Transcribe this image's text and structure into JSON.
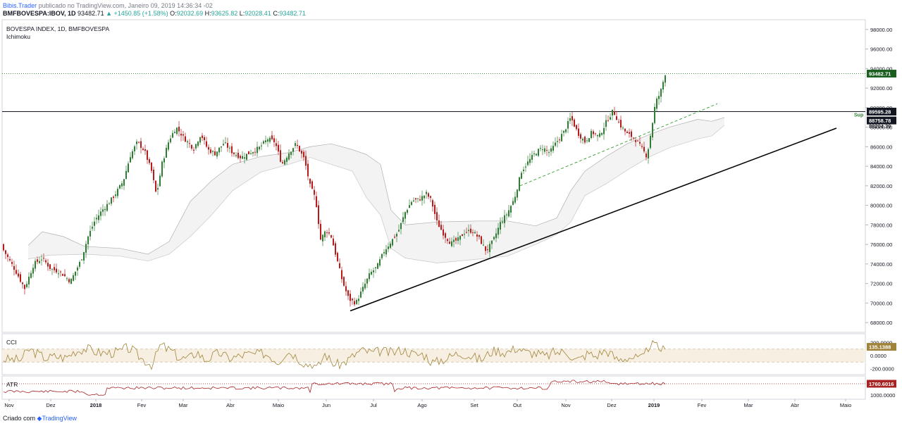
{
  "header": {
    "author": "Bibis.Trader",
    "published_text": "publicado no TradingView.com, Janeiro 09, 2019 14:36:34 -02",
    "symbol": "BMFBOVESPA:IBOV, 1D",
    "last": "93482.71",
    "change": "▲ +1450.85 (+1.58%)",
    "open_label": "O:",
    "open": "92032.69",
    "high_label": "H:",
    "high": "93625.82",
    "low_label": "L:",
    "low": "92028.41",
    "close_label": "C:",
    "close": "93482.71"
  },
  "chart_title": "BOVESPA INDEX, 1D, BMFBOVESPA",
  "indicator_label": "Ichimoku",
  "footer": {
    "prefix": "Criado com",
    "brand": "TradingView"
  },
  "colors": {
    "up": "#26a69a",
    "down": "#b71c1c",
    "body_up": "#2e7d32",
    "cloud": "#ebebeb",
    "cci": "#a1843b",
    "atr": "#a82424"
  },
  "chart_data": [
    {
      "type": "candlestick",
      "title": "BOVESPA INDEX, 1D, BMFBOVESPA",
      "x_ticks": [
        "Nov",
        "Dez",
        "2018",
        "Fev",
        "Mar",
        "Abr",
        "Maio",
        "Jun",
        "Jul",
        "Ago",
        "Set",
        "Out",
        "Nov",
        "Dez",
        "2019",
        "Fev",
        "Mar",
        "Abr",
        "Maio"
      ],
      "y_ticks": [
        "98000.00",
        "96000.00",
        "94000.00",
        "92000.00",
        "90000.00",
        "88000.00",
        "86000.00",
        "84000.00",
        "82000.00",
        "80000.00",
        "78000.00",
        "76000.00",
        "74000.00",
        "72000.00",
        "70000.00",
        "68000.00"
      ],
      "ylim": [
        67000,
        99000
      ],
      "price_labels": [
        "93482.71",
        "89595.28",
        "88758.78",
        "88204.39"
      ],
      "annotation": "Sup",
      "series": [
        {
          "name": "Ichimoku",
          "kind": "cloud"
        }
      ],
      "close_path": [
        [
          0,
          76000
        ],
        [
          10,
          74800
        ],
        [
          22,
          73300
        ],
        [
          35,
          71500
        ],
        [
          48,
          74000
        ],
        [
          60,
          74600
        ],
        [
          72,
          73500
        ],
        [
          85,
          73200
        ],
        [
          100,
          72200
        ],
        [
          115,
          74400
        ],
        [
          125,
          76800
        ],
        [
          135,
          78500
        ],
        [
          145,
          79500
        ],
        [
          155,
          80300
        ],
        [
          165,
          81300
        ],
        [
          175,
          82500
        ],
        [
          185,
          85100
        ],
        [
          195,
          86500
        ],
        [
          205,
          85600
        ],
        [
          215,
          83500
        ],
        [
          222,
          81000
        ],
        [
          230,
          84300
        ],
        [
          240,
          86700
        ],
        [
          250,
          88000
        ],
        [
          262,
          86800
        ],
        [
          275,
          85800
        ],
        [
          285,
          87300
        ],
        [
          295,
          85700
        ],
        [
          305,
          85300
        ],
        [
          318,
          86400
        ],
        [
          330,
          85400
        ],
        [
          342,
          84900
        ],
        [
          355,
          85400
        ],
        [
          368,
          85900
        ],
        [
          380,
          86800
        ],
        [
          390,
          86500
        ],
        [
          400,
          84200
        ],
        [
          410,
          85400
        ],
        [
          420,
          86300
        ],
        [
          432,
          84700
        ],
        [
          440,
          82000
        ],
        [
          448,
          80600
        ],
        [
          455,
          76500
        ],
        [
          463,
          77500
        ],
        [
          470,
          76800
        ],
        [
          478,
          74500
        ],
        [
          486,
          72200
        ],
        [
          495,
          70400
        ],
        [
          505,
          70000
        ],
        [
          515,
          71500
        ],
        [
          525,
          73000
        ],
        [
          535,
          73700
        ],
        [
          545,
          75300
        ],
        [
          555,
          76300
        ],
        [
          565,
          77300
        ],
        [
          575,
          79300
        ],
        [
          585,
          80500
        ],
        [
          595,
          80600
        ],
        [
          605,
          81200
        ],
        [
          612,
          80500
        ],
        [
          620,
          78300
        ],
        [
          630,
          77000
        ],
        [
          640,
          76100
        ],
        [
          650,
          76500
        ],
        [
          660,
          77300
        ],
        [
          670,
          77400
        ],
        [
          680,
          76600
        ],
        [
          690,
          75300
        ],
        [
          700,
          76400
        ],
        [
          710,
          78200
        ],
        [
          720,
          79200
        ],
        [
          730,
          80700
        ],
        [
          740,
          83500
        ],
        [
          750,
          84500
        ],
        [
          760,
          85400
        ],
        [
          770,
          85900
        ],
        [
          780,
          85400
        ],
        [
          790,
          86500
        ],
        [
          800,
          87500
        ],
        [
          810,
          89000
        ],
        [
          820,
          87400
        ],
        [
          830,
          86500
        ],
        [
          840,
          87500
        ],
        [
          850,
          87000
        ],
        [
          860,
          88500
        ],
        [
          870,
          89700
        ],
        [
          880,
          88200
        ],
        [
          890,
          87300
        ],
        [
          900,
          86900
        ],
        [
          910,
          85900
        ],
        [
          918,
          85000
        ],
        [
          925,
          88000
        ],
        [
          930,
          90500
        ],
        [
          937,
          91500
        ],
        [
          944,
          93482.71
        ]
      ],
      "cloud_upper": [
        [
          40,
          75900
        ],
        [
          60,
          77300
        ],
        [
          90,
          76800
        ],
        [
          120,
          75800
        ],
        [
          170,
          75600
        ],
        [
          210,
          75000
        ],
        [
          240,
          76300
        ],
        [
          270,
          80400
        ],
        [
          300,
          82500
        ],
        [
          330,
          84200
        ],
        [
          370,
          85000
        ],
        [
          410,
          85400
        ],
        [
          440,
          86000
        ],
        [
          470,
          86300
        ],
        [
          500,
          85700
        ],
        [
          520,
          85200
        ],
        [
          540,
          84200
        ],
        [
          555,
          79500
        ],
        [
          575,
          78000
        ],
        [
          620,
          78300
        ],
        [
          680,
          78400
        ],
        [
          720,
          78400
        ],
        [
          760,
          77900
        ],
        [
          790,
          78700
        ],
        [
          810,
          81500
        ],
        [
          830,
          83500
        ],
        [
          860,
          85000
        ],
        [
          890,
          86300
        ],
        [
          920,
          87200
        ],
        [
          950,
          88000
        ],
        [
          990,
          88800
        ],
        [
          1010,
          88600
        ],
        [
          1028,
          89000
        ]
      ],
      "cloud_lower": [
        [
          40,
          74500
        ],
        [
          70,
          74900
        ],
        [
          120,
          75000
        ],
        [
          170,
          74800
        ],
        [
          210,
          74300
        ],
        [
          240,
          75000
        ],
        [
          270,
          76800
        ],
        [
          300,
          79000
        ],
        [
          330,
          81500
        ],
        [
          370,
          83400
        ],
        [
          410,
          84200
        ],
        [
          440,
          84900
        ],
        [
          470,
          84200
        ],
        [
          500,
          83500
        ],
        [
          520,
          80800
        ],
        [
          540,
          79000
        ],
        [
          555,
          75600
        ],
        [
          575,
          74600
        ],
        [
          620,
          74100
        ],
        [
          680,
          74500
        ],
        [
          720,
          74800
        ],
        [
          760,
          76000
        ],
        [
          790,
          77000
        ],
        [
          810,
          78300
        ],
        [
          830,
          81000
        ],
        [
          860,
          82200
        ],
        [
          890,
          83600
        ],
        [
          920,
          84900
        ],
        [
          950,
          85900
        ],
        [
          990,
          86800
        ],
        [
          1010,
          87100
        ],
        [
          1028,
          88200
        ]
      ],
      "trendline": [
        [
          497,
          69200
        ],
        [
          1187,
          87900
        ]
      ],
      "support_level": 89595.28,
      "last_level": 93482.71,
      "dashed_channel": [
        [
          738,
          82000
        ],
        [
          1018,
          90400
        ]
      ]
    },
    {
      "type": "line",
      "title": "CCI",
      "y_ticks": [
        "200.0000",
        "0.0000",
        "-200.0000"
      ],
      "last_value": "135.1388",
      "band": [
        -100,
        100
      ]
    },
    {
      "type": "line",
      "title": "ATR",
      "y_ticks": [
        "1000.0000"
      ],
      "last_value": "1760.6016"
    }
  ]
}
